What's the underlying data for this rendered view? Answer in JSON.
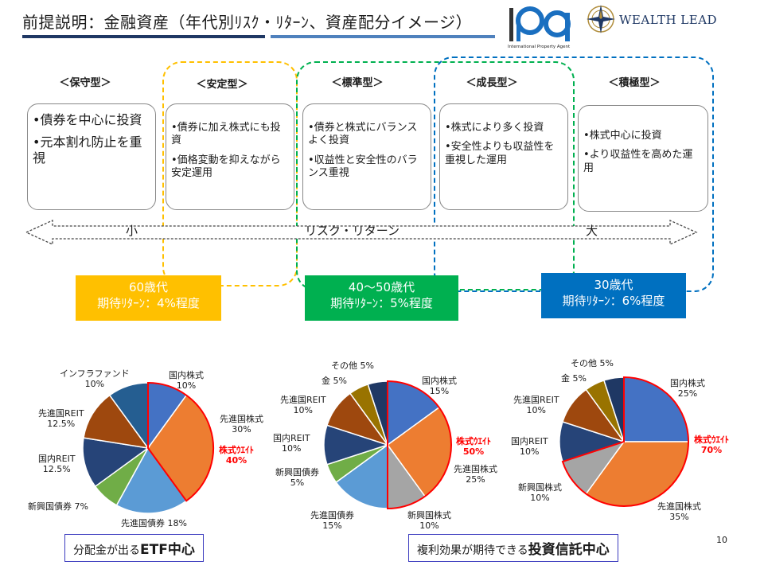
{
  "header": {
    "title": "前提説明：金融資産（年代別ﾘｽｸ・ﾘﾀｰﾝ、資産配分イメージ）",
    "logo_ipa_sub": "International Property Agent",
    "logo_wealth": "WEALTH LEAD"
  },
  "types": [
    {
      "label": "＜保守型＞",
      "bullets": [
        "•債券を中心に投資",
        "•元本割れ防止を重視"
      ]
    },
    {
      "label": "＜安定型＞",
      "bullets": [
        "•債券に加え株式にも投資",
        "•価格変動を抑えながら安定運用"
      ]
    },
    {
      "label": "＜標準型＞",
      "bullets": [
        "•債券と株式にバランスよく投資",
        "•収益性と安全性のバランス重視"
      ]
    },
    {
      "label": "＜成長型＞",
      "bullets": [
        "•株式により多く投資",
        "•安全性よりも収益性を重視した運用"
      ]
    },
    {
      "label": "＜積極型＞",
      "bullets": [
        "•株式中心に投資",
        "•より収益性を高めた運用"
      ]
    }
  ],
  "risk_axis": {
    "small": "小",
    "center": "リスク・リターン",
    "large": "大"
  },
  "age_boxes": [
    {
      "age": "60歳代",
      "return": "期待ﾘﾀｰﾝ：4%程度",
      "color": "#ffc000"
    },
    {
      "age": "40～50歳代",
      "return": "期待ﾘﾀｰﾝ：5%程度",
      "color": "#00b050"
    },
    {
      "age": "30歳代",
      "return": "期待ﾘﾀｰﾝ：6%程度",
      "color": "#0070c0"
    }
  ],
  "weight_label": "株式ｳｴｲﾄ",
  "chart_data": [
    {
      "type": "pie",
      "stock_weight": "40%",
      "slices": [
        {
          "name": "国内株式",
          "value": 10,
          "label": "10%",
          "color": "#4472c4"
        },
        {
          "name": "先進国株式",
          "value": 30,
          "label": "30%",
          "color": "#ed7d31"
        },
        {
          "name": "先進国債券",
          "value": 18,
          "label": "18%",
          "color": "#5b9bd5"
        },
        {
          "name": "新興国債券",
          "value": 7,
          "label": "7%",
          "color": "#70ad47"
        },
        {
          "name": "国内REIT",
          "value": 12.5,
          "label": "12.5%",
          "color": "#264478"
        },
        {
          "name": "先進国REIT",
          "value": 12.5,
          "label": "12.5%",
          "color": "#9e480e"
        },
        {
          "name": "インフラファンド",
          "value": 10,
          "label": "10%",
          "color": "#255e91"
        }
      ]
    },
    {
      "type": "pie",
      "stock_weight": "50%",
      "slices": [
        {
          "name": "国内株式",
          "value": 15,
          "label": "15%",
          "color": "#4472c4"
        },
        {
          "name": "先進国株式",
          "value": 25,
          "label": "25%",
          "color": "#ed7d31"
        },
        {
          "name": "新興国株式",
          "value": 10,
          "label": "10%",
          "color": "#a5a5a5"
        },
        {
          "name": "先進国債券",
          "value": 15,
          "label": "15%",
          "color": "#5b9bd5"
        },
        {
          "name": "新興国債券",
          "value": 5,
          "label": "5%",
          "color": "#70ad47"
        },
        {
          "name": "国内REIT",
          "value": 10,
          "label": "10%",
          "color": "#264478"
        },
        {
          "name": "先進国REIT",
          "value": 10,
          "label": "10%",
          "color": "#9e480e"
        },
        {
          "name": "金",
          "value": 5,
          "label": "5%",
          "color": "#997300"
        },
        {
          "name": "その他",
          "value": 5,
          "label": "5%",
          "color": "#1f3864"
        }
      ]
    },
    {
      "type": "pie",
      "stock_weight": "70%",
      "slices": [
        {
          "name": "国内株式",
          "value": 25,
          "label": "25%",
          "color": "#4472c4"
        },
        {
          "name": "先進国株式",
          "value": 35,
          "label": "35%",
          "color": "#ed7d31"
        },
        {
          "name": "新興国株式",
          "value": 10,
          "label": "10%",
          "color": "#a5a5a5"
        },
        {
          "name": "国内REIT",
          "value": 10,
          "label": "10%",
          "color": "#264478"
        },
        {
          "name": "先進国REIT",
          "value": 10,
          "label": "10%",
          "color": "#9e480e"
        },
        {
          "name": "金",
          "value": 5,
          "label": "5%",
          "color": "#997300"
        },
        {
          "name": "その他",
          "value": 5,
          "label": "5%",
          "color": "#1f3864"
        }
      ]
    }
  ],
  "bottom": {
    "left_pre": "分配金が出る",
    "left_bold": "ETF中心",
    "right_pre": "複利効果が期待できる",
    "right_bold": "投資信託中心"
  },
  "page_number": "10"
}
